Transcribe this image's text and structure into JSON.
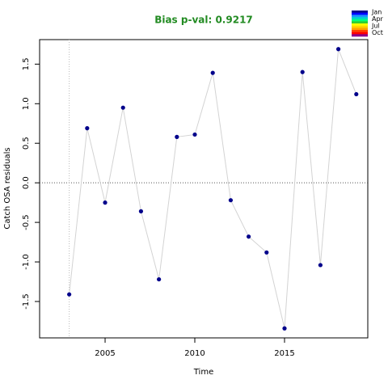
{
  "chart_data": {
    "type": "line",
    "title": "Bias p-val: 0.9217",
    "title_color": "#228b22",
    "x_label": "Time",
    "y_label": "Catch OSA residuals",
    "x": [
      2003,
      2004,
      2005,
      2006,
      2007,
      2008,
      2009,
      2010,
      2011,
      2012,
      2013,
      2014,
      2015,
      2016,
      2017,
      2018,
      2019
    ],
    "series": [
      {
        "name": "Catch",
        "color": "#00008b",
        "line_color": "#d3d3d3",
        "values": [
          -1.41,
          0.69,
          -0.25,
          0.95,
          -0.36,
          -1.22,
          0.58,
          0.61,
          1.39,
          -0.22,
          -0.68,
          -0.88,
          -1.84,
          1.4,
          -1.04,
          1.69,
          1.12
        ]
      }
    ],
    "xlim": [
      2001.35,
      2019.64
    ],
    "ylim": [
      -1.96,
      1.81
    ],
    "xticks": [
      2005,
      2010,
      2015
    ],
    "yticks": [
      1.5,
      {
        "value": 1.0,
        "label": "1.0"
      },
      0.5,
      {
        "value": 0.0,
        "label": "0.0"
      },
      -0.5,
      {
        "value": -1.0,
        "label": "-1.0"
      },
      -1.5
    ],
    "hline": 0,
    "vline": 2003,
    "legend": {
      "labels": [
        "Jan",
        "Apr",
        "Jul",
        "Oct"
      ],
      "colors": [
        "#00008b",
        "#0000ff",
        "#1e90ff",
        "#00ced1",
        "#00ff7f",
        "#32cd32",
        "#ffff00",
        "#ffd700",
        "#ffa500",
        "#ff4500",
        "#ff0000",
        "#8b008b"
      ]
    }
  }
}
